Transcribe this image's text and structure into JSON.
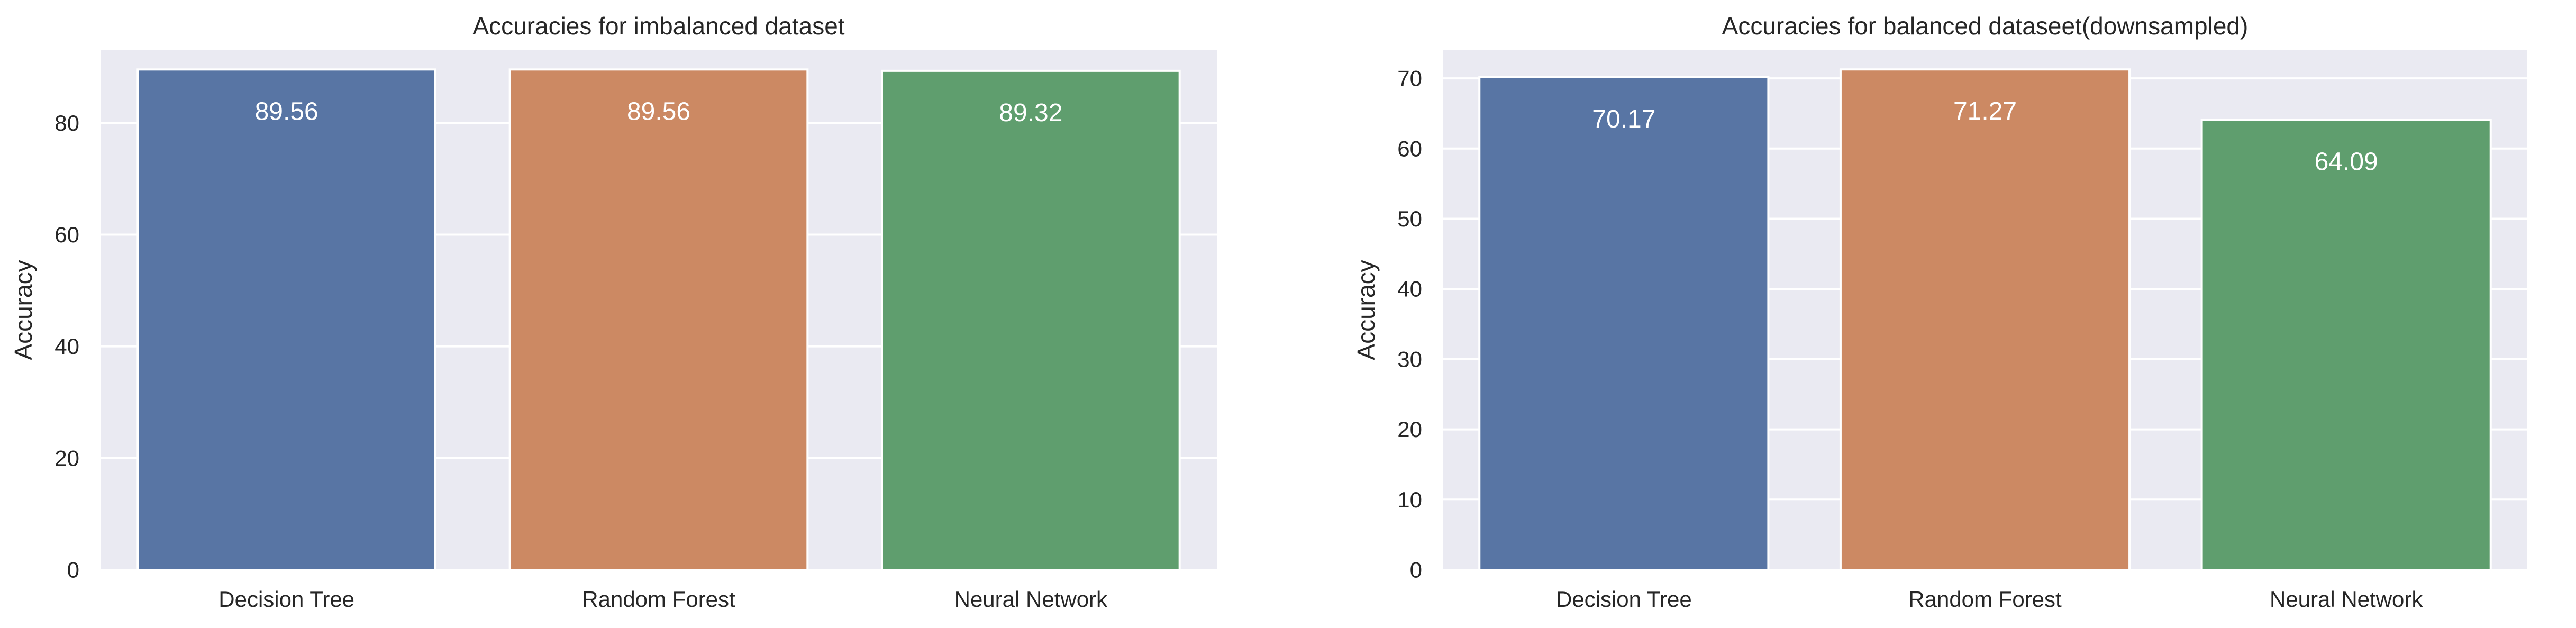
{
  "chart_data": [
    {
      "type": "bar",
      "title": "Accuracies for imbalanced dataset",
      "xlabel": "",
      "ylabel": "Accuracy",
      "categories": [
        "Decision Tree",
        "Random Forest",
        "Neural Network"
      ],
      "values": [
        89.56,
        89.56,
        89.32
      ],
      "value_labels": [
        "89.56",
        "89.56",
        "89.32"
      ],
      "colors": [
        "#5875a4",
        "#cc8963",
        "#5f9e6e"
      ],
      "ylim": [
        0,
        93
      ],
      "yticks": [
        0,
        20,
        40,
        60,
        80
      ],
      "ytick_labels": [
        "0",
        "20",
        "40",
        "60",
        "80"
      ],
      "grid": "horizontal"
    },
    {
      "type": "bar",
      "title": "Accuracies for balanced dataseet(downsampled)",
      "xlabel": "",
      "ylabel": "Accuracy",
      "categories": [
        "Decision Tree",
        "Random Forest",
        "Neural Network"
      ],
      "values": [
        70.17,
        71.27,
        64.09
      ],
      "value_labels": [
        "70.17",
        "71.27",
        "64.09"
      ],
      "colors": [
        "#5875a4",
        "#cc8963",
        "#5f9e6e"
      ],
      "ylim": [
        0,
        74
      ],
      "yticks": [
        0,
        10,
        20,
        30,
        40,
        50,
        60,
        70
      ],
      "ytick_labels": [
        "0",
        "10",
        "20",
        "30",
        "40",
        "50",
        "60",
        "70"
      ],
      "grid": "horizontal"
    }
  ]
}
